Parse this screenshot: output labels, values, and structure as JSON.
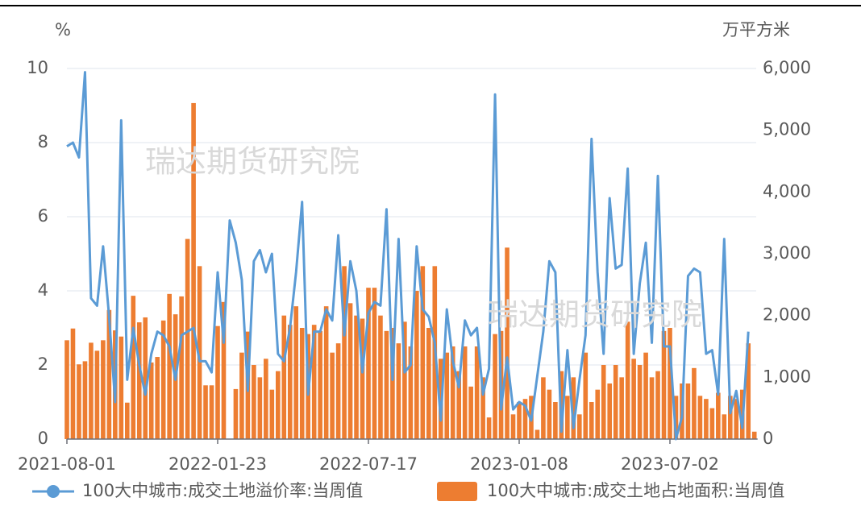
{
  "chart_data": {
    "type": "bar-line",
    "y_label": "%",
    "y2_label": "万平方米",
    "watermarks": [
      "瑞达期货研究院",
      "瑞达期货研究院"
    ],
    "categories": [
      "2021-08-01",
      null,
      null,
      null,
      null,
      null,
      null,
      null,
      null,
      null,
      null,
      null,
      null,
      null,
      null,
      null,
      null,
      null,
      null,
      null,
      null,
      null,
      null,
      null,
      null,
      "2022-01-23",
      null,
      null,
      null,
      null,
      null,
      null,
      null,
      null,
      null,
      null,
      null,
      null,
      null,
      null,
      null,
      null,
      null,
      null,
      null,
      null,
      null,
      null,
      null,
      null,
      "2022-07-17",
      null,
      null,
      null,
      null,
      null,
      null,
      null,
      null,
      null,
      null,
      null,
      null,
      null,
      null,
      null,
      null,
      null,
      null,
      null,
      null,
      null,
      null,
      null,
      null,
      "2023-01-08",
      null,
      null,
      null,
      null,
      null,
      null,
      null,
      null,
      null,
      null,
      null,
      null,
      null,
      null,
      null,
      null,
      null,
      null,
      null,
      null,
      null,
      null,
      null,
      null,
      "2023-07-02",
      null,
      null,
      null,
      null,
      null,
      null,
      null,
      null,
      null,
      null,
      null,
      null,
      null,
      null
    ],
    "series": [
      {
        "name": "100大中城市:成交土地溢价率:当周值",
        "type": "line",
        "axis": "y",
        "color": "#5b9bd5",
        "values": [
          7.9,
          8.0,
          7.6,
          9.9,
          3.8,
          3.6,
          5.2,
          3.3,
          1.0,
          8.6,
          1.6,
          3.0,
          2.0,
          1.2,
          2.3,
          2.9,
          2.8,
          2.5,
          1.6,
          2.8,
          2.9,
          3.0,
          2.1,
          2.1,
          1.8,
          4.5,
          2.6,
          5.9,
          5.3,
          4.3,
          1.3,
          4.8,
          5.1,
          4.5,
          5.0,
          2.3,
          2.1,
          3.0,
          4.5,
          6.4,
          1.2,
          2.9,
          2.9,
          3.5,
          3.2,
          5.5,
          2.8,
          4.8,
          4.0,
          1.8,
          3.4,
          3.7,
          3.6,
          6.2,
          1.6,
          5.4,
          1.8,
          2.0,
          5.2,
          3.5,
          3.3,
          2.6,
          0.5,
          3.5,
          2.1,
          1.4,
          3.2,
          2.8,
          3.0,
          1.2,
          1.9,
          9.3,
          0.8,
          2.2,
          0.8,
          1.0,
          0.9,
          0.5,
          1.7,
          2.9,
          4.8,
          4.5,
          0.2,
          2.4,
          0.3,
          1.6,
          2.8,
          8.1,
          4.5,
          2.3,
          6.5,
          4.6,
          4.7,
          7.3,
          2.3,
          4.2,
          5.3,
          2.6,
          7.1,
          2.5,
          2.5,
          0.0,
          0.6,
          4.4,
          4.6,
          4.5,
          2.3,
          2.4,
          1.2,
          5.4,
          0.7,
          1.3,
          0.3,
          2.9,
          null
        ]
      },
      {
        "name": "100大中城市:成交土地占地面积:当周值",
        "type": "bar",
        "axis": "y2",
        "color": "#ed7d31",
        "values": [
          1600,
          1790,
          1210,
          1260,
          1560,
          1430,
          1600,
          2090,
          1760,
          1660,
          590,
          2320,
          1890,
          1970,
          1240,
          1330,
          1920,
          2350,
          2020,
          2310,
          3240,
          5440,
          2800,
          870,
          870,
          1830,
          2220,
          0,
          810,
          1400,
          1740,
          1200,
          1000,
          1300,
          800,
          1100,
          2000,
          1850,
          2150,
          1800,
          1700,
          1850,
          1750,
          2150,
          1400,
          1550,
          2800,
          2200,
          2000,
          1950,
          2450,
          2450,
          2000,
          1750,
          1800,
          1550,
          1900,
          1500,
          2400,
          2800,
          1800,
          2800,
          1300,
          1400,
          1500,
          1100,
          1500,
          850,
          1500,
          1000,
          350,
          1700,
          1750,
          3100,
          400,
          600,
          650,
          700,
          150,
          1000,
          800,
          600,
          1100,
          700,
          1000,
          400,
          1400,
          600,
          800,
          1200,
          900,
          1200,
          1000,
          1900,
          1300,
          1200,
          1400,
          1000,
          1100,
          1750,
          1800,
          700,
          900,
          900,
          1150,
          700,
          650,
          500,
          750,
          400,
          700,
          650,
          800,
          1550,
          120
        ]
      }
    ],
    "ylim": [
      0,
      10
    ],
    "yticks": [
      0,
      2,
      4,
      6,
      8,
      10
    ],
    "y2lim": [
      0,
      6000
    ],
    "y2ticks": [
      0,
      {
        "value": 1000,
        "label": "1,000"
      },
      {
        "value": 2000,
        "label": "2,000"
      },
      {
        "value": 3000,
        "label": "3,000"
      },
      {
        "value": 4000,
        "label": "4,000"
      },
      {
        "value": 5000,
        "label": "5,000"
      },
      {
        "value": 6000,
        "label": "6,000"
      }
    ],
    "grid": true
  }
}
